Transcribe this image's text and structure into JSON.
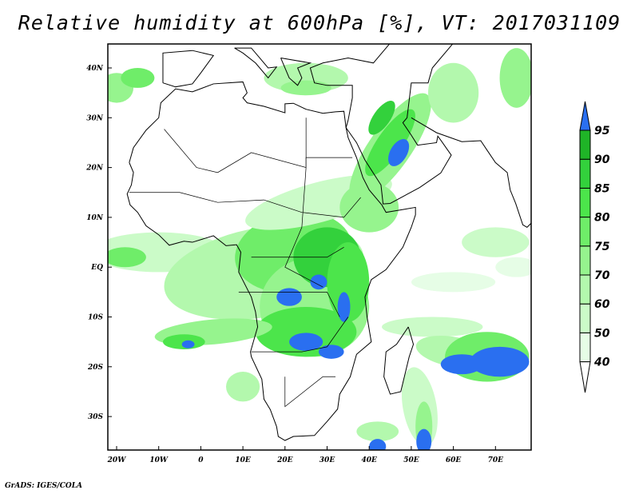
{
  "title": "Relative humidity at 600hPa [%], VT: 2017031109",
  "credit": "GrADS: IGES/COLA",
  "map": {
    "variable": "Relative humidity",
    "level_hpa": 600,
    "units": "%",
    "valid_time": "2017031109",
    "lon_range": [
      -22,
      79
    ],
    "lat_range": [
      -37,
      45
    ],
    "lon_ticks": [
      {
        "v": -20,
        "label": "20W"
      },
      {
        "v": -10,
        "label": "10W"
      },
      {
        "v": 0,
        "label": "0"
      },
      {
        "v": 10,
        "label": "10E"
      },
      {
        "v": 20,
        "label": "20E"
      },
      {
        "v": 30,
        "label": "30E"
      },
      {
        "v": 40,
        "label": "40E"
      },
      {
        "v": 50,
        "label": "50E"
      },
      {
        "v": 60,
        "label": "60E"
      },
      {
        "v": 70,
        "label": "70E"
      }
    ],
    "lat_ticks": [
      {
        "v": 40,
        "label": "40N"
      },
      {
        "v": 30,
        "label": "30N"
      },
      {
        "v": 20,
        "label": "20N"
      },
      {
        "v": 10,
        "label": "10N"
      },
      {
        "v": 0,
        "label": "EQ"
      },
      {
        "v": -10,
        "label": "10S"
      },
      {
        "v": -20,
        "label": "20S"
      },
      {
        "v": -30,
        "label": "30S"
      }
    ]
  },
  "colorbar": {
    "levels": [
      "40",
      "50",
      "60",
      "70",
      "75",
      "80",
      "85",
      "90",
      "95"
    ],
    "colors": [
      "#e6fde6",
      "#cbfbc8",
      "#b3f8ad",
      "#96f48e",
      "#6fed69",
      "#4ce54b",
      "#33d13c",
      "#1fb427"
    ],
    "under_color": "#ffffff",
    "over_color": "#2a6ff0"
  }
}
